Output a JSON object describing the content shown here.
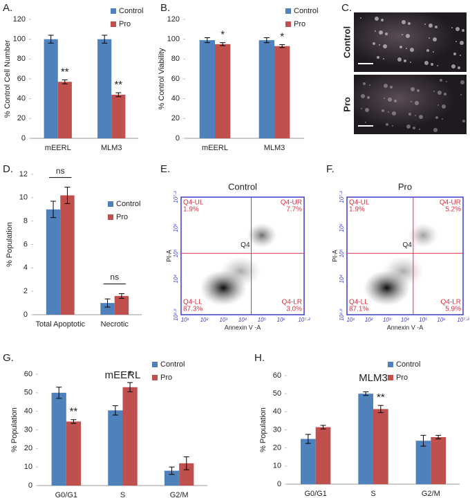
{
  "chart_data": [
    {
      "type": "bar",
      "panel_label": "A.",
      "ylabel": "% Control Cell Number",
      "categories": [
        "mEERL",
        "MLM3"
      ],
      "series": [
        {
          "name": "Control",
          "color": "#4f81bd",
          "values": [
            100,
            100
          ],
          "errors": [
            4,
            4
          ]
        },
        {
          "name": "Pro",
          "color": "#c0504d",
          "values": [
            57,
            44
          ],
          "errors": [
            2,
            2
          ]
        }
      ],
      "annotations": [
        {
          "text": "**",
          "series": 1,
          "index": 0
        },
        {
          "text": "**",
          "series": 1,
          "index": 1
        }
      ],
      "ylim": [
        0,
        120
      ],
      "yticks": [
        0,
        20,
        40,
        60,
        80,
        100,
        120
      ]
    },
    {
      "type": "bar",
      "panel_label": "B.",
      "ylabel": "% Control Viability",
      "categories": [
        "mEERL",
        "MLM3"
      ],
      "series": [
        {
          "name": "Control",
          "color": "#4f81bd",
          "values": [
            99,
            99
          ],
          "errors": [
            2.5,
            2.5
          ]
        },
        {
          "name": "Pro",
          "color": "#c0504d",
          "values": [
            95,
            93
          ],
          "errors": [
            1.5,
            1.5
          ]
        }
      ],
      "annotations": [
        {
          "text": "*",
          "series": 1,
          "index": 0
        },
        {
          "text": "*",
          "series": 1,
          "index": 1
        }
      ],
      "ylim": [
        0,
        120
      ],
      "yticks": [
        0,
        20,
        40,
        60,
        80,
        100,
        120
      ]
    },
    {
      "type": "image",
      "panel_label": "C.",
      "images": [
        {
          "label": "Control"
        },
        {
          "label": "Pro"
        }
      ]
    },
    {
      "type": "bar",
      "panel_label": "D.",
      "ylabel": "% Population",
      "categories": [
        "Total Apoptotic",
        "Necrotic"
      ],
      "series": [
        {
          "name": "Control",
          "color": "#4f81bd",
          "values": [
            9.0,
            1.0
          ],
          "errors": [
            0.7,
            0.35
          ]
        },
        {
          "name": "Pro",
          "color": "#c0504d",
          "values": [
            10.2,
            1.6
          ],
          "errors": [
            0.7,
            0.2
          ]
        }
      ],
      "brackets": [
        {
          "text": "ns",
          "index": 0
        },
        {
          "text": "ns",
          "index": 1
        }
      ],
      "ylim": [
        0,
        12
      ],
      "yticks": [
        0,
        2,
        4,
        6,
        8,
        10,
        12
      ]
    },
    {
      "type": "flow",
      "panel_label": "E.",
      "title": "Control",
      "xlabel": "Annexin V -A",
      "ylabel": "PI-A",
      "xlim": [
        0.8,
        7.2
      ],
      "ylim": [
        2.6,
        7.2
      ],
      "xticks": [
        {
          "value": 1,
          "label": "10¹"
        },
        {
          "value": 2,
          "label": "10²"
        },
        {
          "value": 3,
          "label": "10³"
        },
        {
          "value": 4,
          "label": "10⁴"
        },
        {
          "value": 5,
          "label": "10⁵"
        },
        {
          "value": 6,
          "label": "10⁶"
        },
        {
          "value": 7.2,
          "label": "10⁷·²"
        }
      ],
      "yticks": [
        {
          "value": 2.6,
          "label": "10²·⁶"
        },
        {
          "value": 4,
          "label": "10⁴"
        },
        {
          "value": 5,
          "label": "10⁵"
        },
        {
          "value": 6,
          "label": "10⁶"
        },
        {
          "value": 7.2,
          "label": "10⁷·²"
        }
      ],
      "gate": {
        "x": 4.45,
        "y": 5.0
      },
      "center_label": "Q4",
      "quadrants": {
        "names": [
          "Q4-UL",
          "Q4-UR",
          "Q4-LL",
          "Q4-LR"
        ],
        "values": [
          1.9,
          7.7,
          87.3,
          3.0
        ],
        "value_labels": [
          "1.9%",
          "7.7%",
          "87.3%",
          "3.0%"
        ]
      }
    },
    {
      "type": "flow",
      "panel_label": "F.",
      "title": "Pro",
      "xlabel": "Annexin V -A",
      "ylabel": "PI-A",
      "xlim": [
        0.8,
        7.2
      ],
      "ylim": [
        2.6,
        7.2
      ],
      "xticks": [
        {
          "value": 1,
          "label": "10¹"
        },
        {
          "value": 2,
          "label": "10²"
        },
        {
          "value": 3,
          "label": "10³"
        },
        {
          "value": 4,
          "label": "10⁴"
        },
        {
          "value": 5,
          "label": "10⁵"
        },
        {
          "value": 6,
          "label": "10⁶"
        },
        {
          "value": 7.2,
          "label": "10⁷·²"
        }
      ],
      "yticks": [
        {
          "value": 2.6,
          "label": "10²·⁶"
        },
        {
          "value": 4,
          "label": "10⁴"
        },
        {
          "value": 5,
          "label": "10⁵"
        },
        {
          "value": 6,
          "label": "10⁶"
        },
        {
          "value": 7.2,
          "label": "10⁷·²"
        }
      ],
      "gate": {
        "x": 4.45,
        "y": 5.0
      },
      "center_label": "Q4",
      "quadrants": {
        "names": [
          "Q4-UL",
          "Q4-UR",
          "Q4-LL",
          "Q4-LR"
        ],
        "values": [
          1.9,
          5.2,
          87.1,
          5.9
        ],
        "value_labels": [
          "1.9%",
          "5.2%",
          "87.1%",
          "5.9%"
        ]
      }
    },
    {
      "type": "bar",
      "panel_label": "G.",
      "title": "mEERL",
      "ylabel": "% Population",
      "categories": [
        "G0/G1",
        "S",
        "G2/M"
      ],
      "series": [
        {
          "name": "Control",
          "color": "#4f81bd",
          "values": [
            50,
            40.5,
            8
          ],
          "errors": [
            3,
            2.5,
            2
          ]
        },
        {
          "name": "Pro",
          "color": "#c0504d",
          "values": [
            34.5,
            53,
            12
          ],
          "errors": [
            1,
            2.5,
            3.5
          ]
        }
      ],
      "annotations": [
        {
          "text": "**",
          "series": 1,
          "index": 0
        },
        {
          "text": "*",
          "series": 1,
          "index": 1
        }
      ],
      "ylim": [
        0,
        60
      ],
      "yticks": [
        0,
        10,
        20,
        30,
        40,
        50,
        60
      ]
    },
    {
      "type": "bar",
      "panel_label": "H.",
      "title": "MLM3",
      "ylabel": "% Population",
      "categories": [
        "G0/G1",
        "S",
        "G2/M"
      ],
      "series": [
        {
          "name": "Control",
          "color": "#4f81bd",
          "values": [
            25,
            50,
            24
          ],
          "errors": [
            2.5,
            1,
            3
          ]
        },
        {
          "name": "Pro",
          "color": "#c0504d",
          "values": [
            31.5,
            41.5,
            26
          ],
          "errors": [
            1,
            2,
            1
          ]
        }
      ],
      "annotations": [
        {
          "text": "**",
          "series": 1,
          "index": 1
        }
      ],
      "ylim": [
        0,
        60
      ],
      "yticks": [
        0,
        10,
        20,
        30,
        40,
        50,
        60
      ]
    }
  ]
}
